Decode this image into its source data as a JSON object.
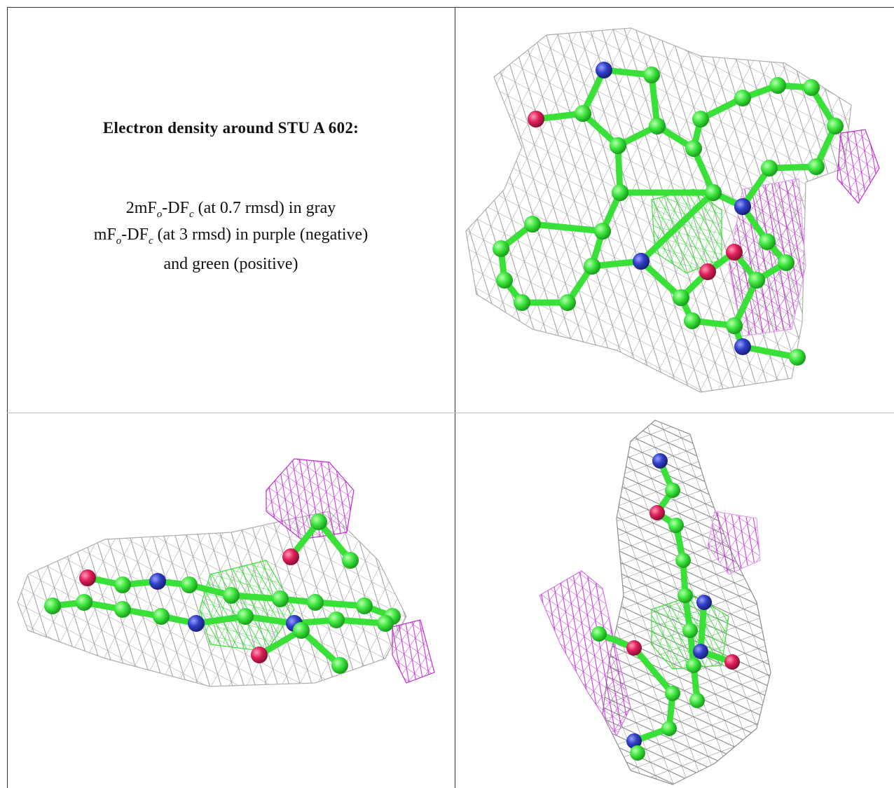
{
  "caption": {
    "title": "Electron density around STU A 602:",
    "lines": [
      [
        "2mF",
        "o",
        "-DF",
        "c",
        " (at 0.7 rmsd) in gray"
      ],
      [
        "mF",
        "o",
        "-DF",
        "c",
        " (at 3 rmsd) in purple (negative)"
      ],
      [
        "and green (positive)"
      ]
    ]
  }
}
